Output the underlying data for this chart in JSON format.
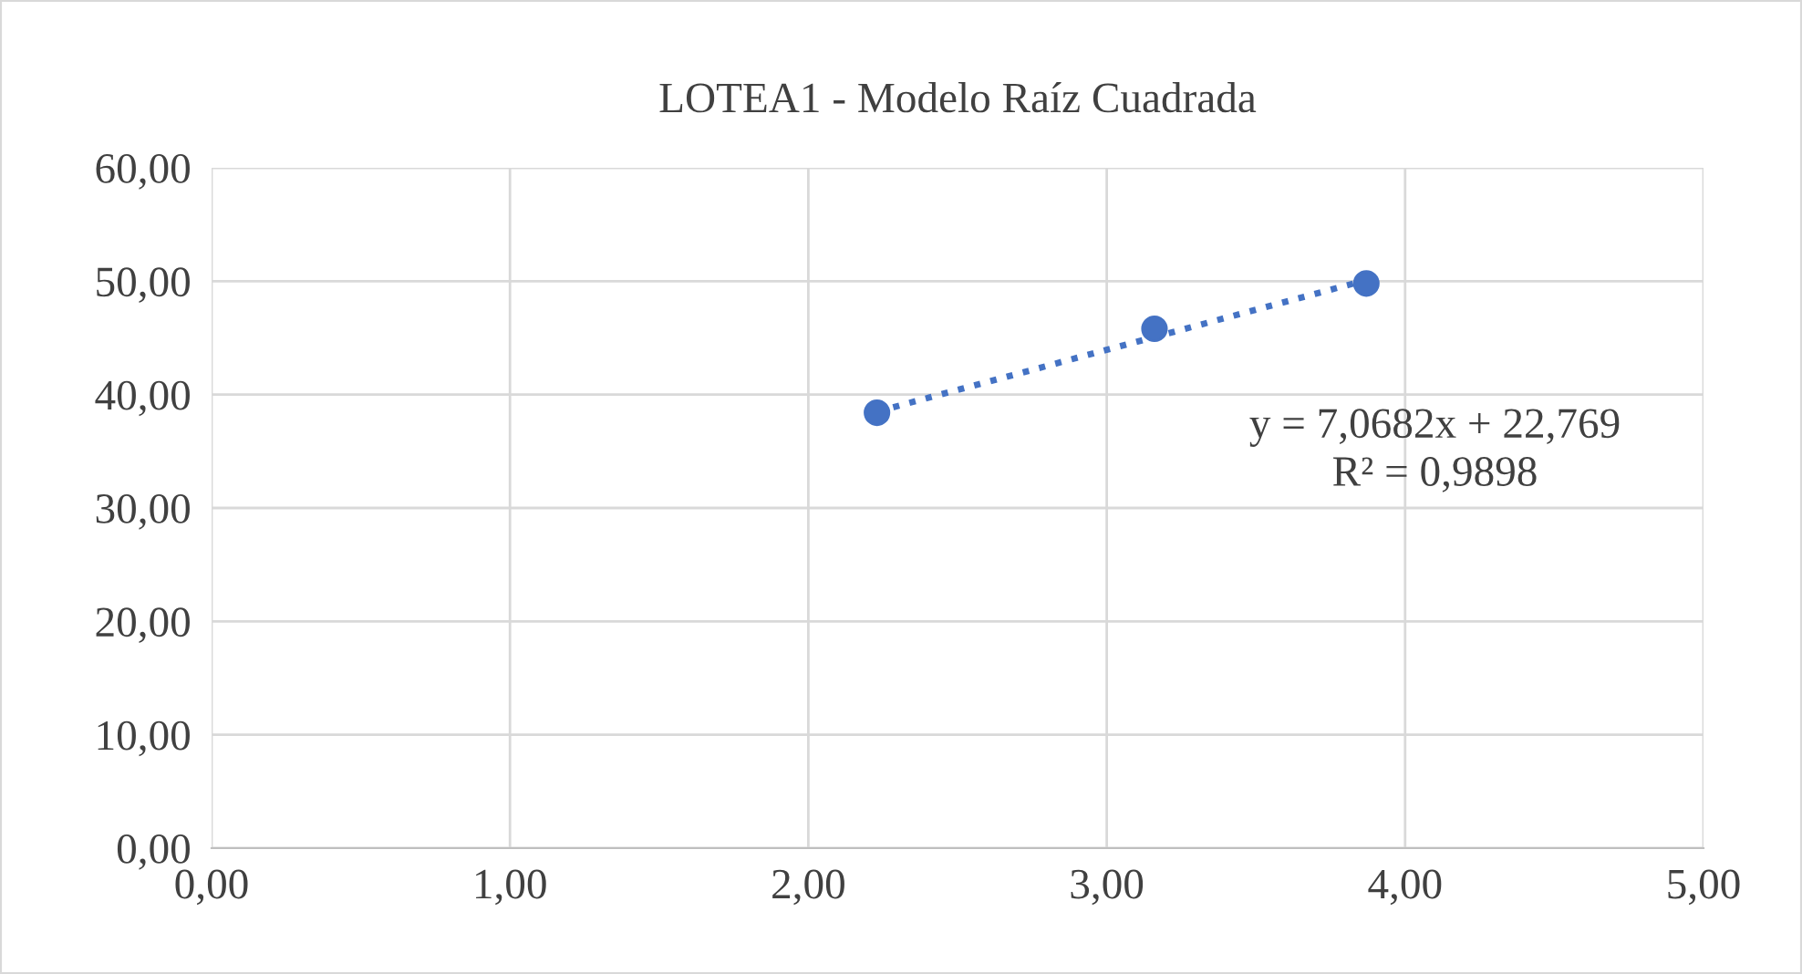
{
  "chart_data": {
    "type": "scatter",
    "title": "LOTEA1 - Modelo Raíz Cuadrada",
    "series": [
      {
        "color": "#4472c4",
        "x": [
          2.23,
          3.16,
          3.87
        ],
        "values": [
          38.4,
          45.8,
          49.8
        ]
      },
      {
        "type": "line",
        "color": "#4472c4",
        "x": [
          2.23,
          3.87
        ],
        "values": [
          38.5,
          50.1
        ],
        "line_style": "dotted",
        "marker": "none"
      }
    ],
    "xlim": [
      0,
      5
    ],
    "ylim": [
      0,
      60
    ],
    "xticks": [
      {
        "value": 0,
        "label": "0,00"
      },
      {
        "value": 1,
        "label": "1,00"
      },
      {
        "value": 2,
        "label": "2,00"
      },
      {
        "value": 3,
        "label": "3,00"
      },
      {
        "value": 4,
        "label": "4,00"
      },
      {
        "value": 5,
        "label": "5,00"
      }
    ],
    "yticks": [
      {
        "value": 0,
        "label": "0,00"
      },
      {
        "value": 10,
        "label": "10,00"
      },
      {
        "value": 20,
        "label": "20,00"
      },
      {
        "value": 30,
        "label": "30,00"
      },
      {
        "value": 40,
        "label": "40,00"
      },
      {
        "value": 50,
        "label": "50,00"
      },
      {
        "value": 60,
        "label": "60,00"
      }
    ],
    "grid": true,
    "marker": "circle",
    "annotations": [
      "y = 7,0682x + 22,769\nR² = 0,9898"
    ]
  }
}
